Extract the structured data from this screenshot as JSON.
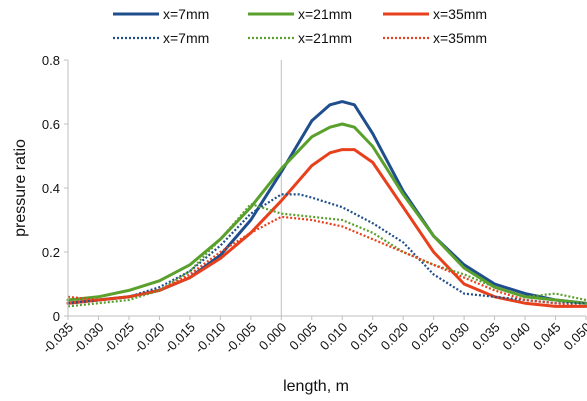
{
  "chart_data": {
    "type": "line",
    "xlabel": "length, m",
    "ylabel": "pressure ratio",
    "xlim": [
      -0.035,
      0.05
    ],
    "ylim": [
      0,
      0.8
    ],
    "x_ticks": [
      "-0.035",
      "-0.030",
      "-0.025",
      "-0.020",
      "-0.015",
      "-0.010",
      "-0.005",
      "0.000",
      "0.005",
      "0.010",
      "0.015",
      "0.020",
      "0.025",
      "0.030",
      "0.035",
      "0.040",
      "0.045",
      "0.050"
    ],
    "y_ticks": [
      "0",
      "0.2",
      "0.4",
      "0.6",
      "0.8"
    ],
    "grid": "vertical line at x=0",
    "legend_position": "top",
    "series": [
      {
        "name": "x=7mm",
        "style": "solid",
        "color": "#1f4e8c",
        "x": [
          -0.035,
          -0.03,
          -0.025,
          -0.02,
          -0.015,
          -0.01,
          -0.005,
          0.0,
          0.005,
          0.008,
          0.01,
          0.012,
          0.015,
          0.02,
          0.025,
          0.03,
          0.035,
          0.04,
          0.045,
          0.05
        ],
        "y": [
          0.04,
          0.05,
          0.06,
          0.08,
          0.12,
          0.19,
          0.3,
          0.45,
          0.61,
          0.66,
          0.67,
          0.66,
          0.57,
          0.39,
          0.25,
          0.16,
          0.1,
          0.07,
          0.05,
          0.04
        ]
      },
      {
        "name": "x=21mm",
        "style": "solid",
        "color": "#5aa02c",
        "x": [
          -0.035,
          -0.03,
          -0.025,
          -0.02,
          -0.015,
          -0.01,
          -0.005,
          0.0,
          0.005,
          0.008,
          0.01,
          0.012,
          0.015,
          0.02,
          0.025,
          0.03,
          0.035,
          0.04,
          0.045,
          0.05
        ],
        "y": [
          0.05,
          0.06,
          0.08,
          0.11,
          0.16,
          0.24,
          0.34,
          0.46,
          0.56,
          0.59,
          0.6,
          0.59,
          0.53,
          0.38,
          0.25,
          0.15,
          0.09,
          0.06,
          0.05,
          0.04
        ]
      },
      {
        "name": "x=35mm",
        "style": "solid",
        "color": "#e8401c",
        "x": [
          -0.035,
          -0.03,
          -0.025,
          -0.02,
          -0.015,
          -0.01,
          -0.005,
          0.0,
          0.005,
          0.008,
          0.01,
          0.012,
          0.015,
          0.02,
          0.025,
          0.03,
          0.035,
          0.04,
          0.045,
          0.05
        ],
        "y": [
          0.04,
          0.05,
          0.06,
          0.08,
          0.12,
          0.18,
          0.26,
          0.36,
          0.47,
          0.51,
          0.52,
          0.52,
          0.48,
          0.34,
          0.2,
          0.1,
          0.06,
          0.04,
          0.03,
          0.03
        ]
      },
      {
        "name": "x=7mm",
        "style": "dotted",
        "color": "#1f4e8c",
        "x": [
          -0.035,
          -0.03,
          -0.025,
          -0.02,
          -0.015,
          -0.01,
          -0.005,
          0.0,
          0.003,
          0.005,
          0.01,
          0.015,
          0.02,
          0.025,
          0.03,
          0.035,
          0.04,
          0.045,
          0.05
        ],
        "y": [
          0.04,
          0.05,
          0.06,
          0.09,
          0.14,
          0.22,
          0.32,
          0.38,
          0.38,
          0.37,
          0.34,
          0.29,
          0.23,
          0.13,
          0.07,
          0.06,
          0.05,
          0.04,
          0.04
        ]
      },
      {
        "name": "x=21mm",
        "style": "dotted",
        "color": "#5aa02c",
        "x": [
          -0.035,
          -0.03,
          -0.025,
          -0.02,
          -0.015,
          -0.01,
          -0.005,
          0.0,
          0.005,
          0.01,
          0.015,
          0.02,
          0.025,
          0.03,
          0.035,
          0.04,
          0.045,
          0.05
        ],
        "y": [
          0.03,
          0.04,
          0.05,
          0.08,
          0.14,
          0.24,
          0.35,
          0.32,
          0.31,
          0.3,
          0.26,
          0.2,
          0.16,
          0.13,
          0.09,
          0.06,
          0.07,
          0.05
        ]
      },
      {
        "name": "x=35mm",
        "style": "dotted",
        "color": "#e8401c",
        "x": [
          -0.035,
          -0.03,
          -0.025,
          -0.02,
          -0.015,
          -0.01,
          -0.005,
          0.0,
          0.005,
          0.01,
          0.015,
          0.02,
          0.025,
          0.03,
          0.035,
          0.04,
          0.045,
          0.05
        ],
        "y": [
          0.06,
          0.05,
          0.06,
          0.08,
          0.13,
          0.2,
          0.26,
          0.31,
          0.3,
          0.28,
          0.24,
          0.2,
          0.16,
          0.12,
          0.08,
          0.05,
          0.04,
          0.03
        ]
      }
    ]
  }
}
